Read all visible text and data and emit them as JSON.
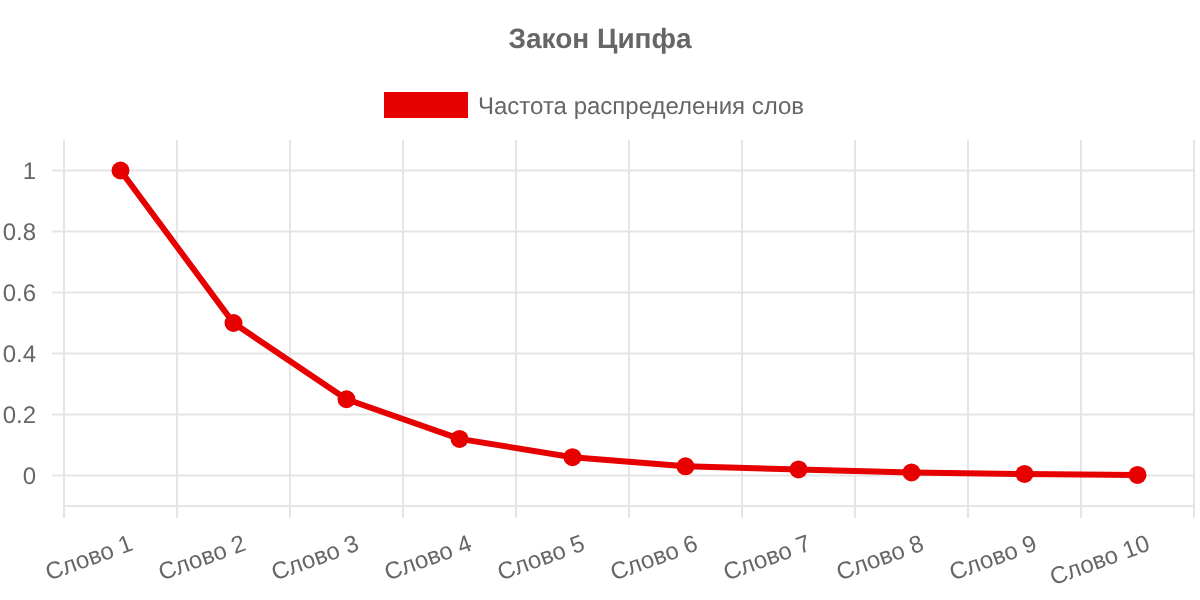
{
  "chart_data": {
    "type": "line",
    "title": "Закон Ципфа",
    "categories": [
      "Слово 1",
      "Слово 2",
      "Слово 3",
      "Слово 4",
      "Слово 5",
      "Слово 6",
      "Слово 7",
      "Слово 8",
      "Слово 9",
      "Слово 10"
    ],
    "series": [
      {
        "name": "Частота распределения слов",
        "color": "#e60000",
        "values": [
          1,
          0.5,
          0.25,
          0.12,
          0.06,
          0.03,
          0.02,
          0.01,
          0.005,
          0.002
        ]
      }
    ],
    "ylim": [
      -0.1,
      1.1
    ],
    "yticks": [
      0,
      0.2,
      0.4,
      0.6,
      0.8,
      1
    ],
    "grid": true,
    "legend": "top",
    "marker": "circle",
    "line_style": "solid"
  }
}
